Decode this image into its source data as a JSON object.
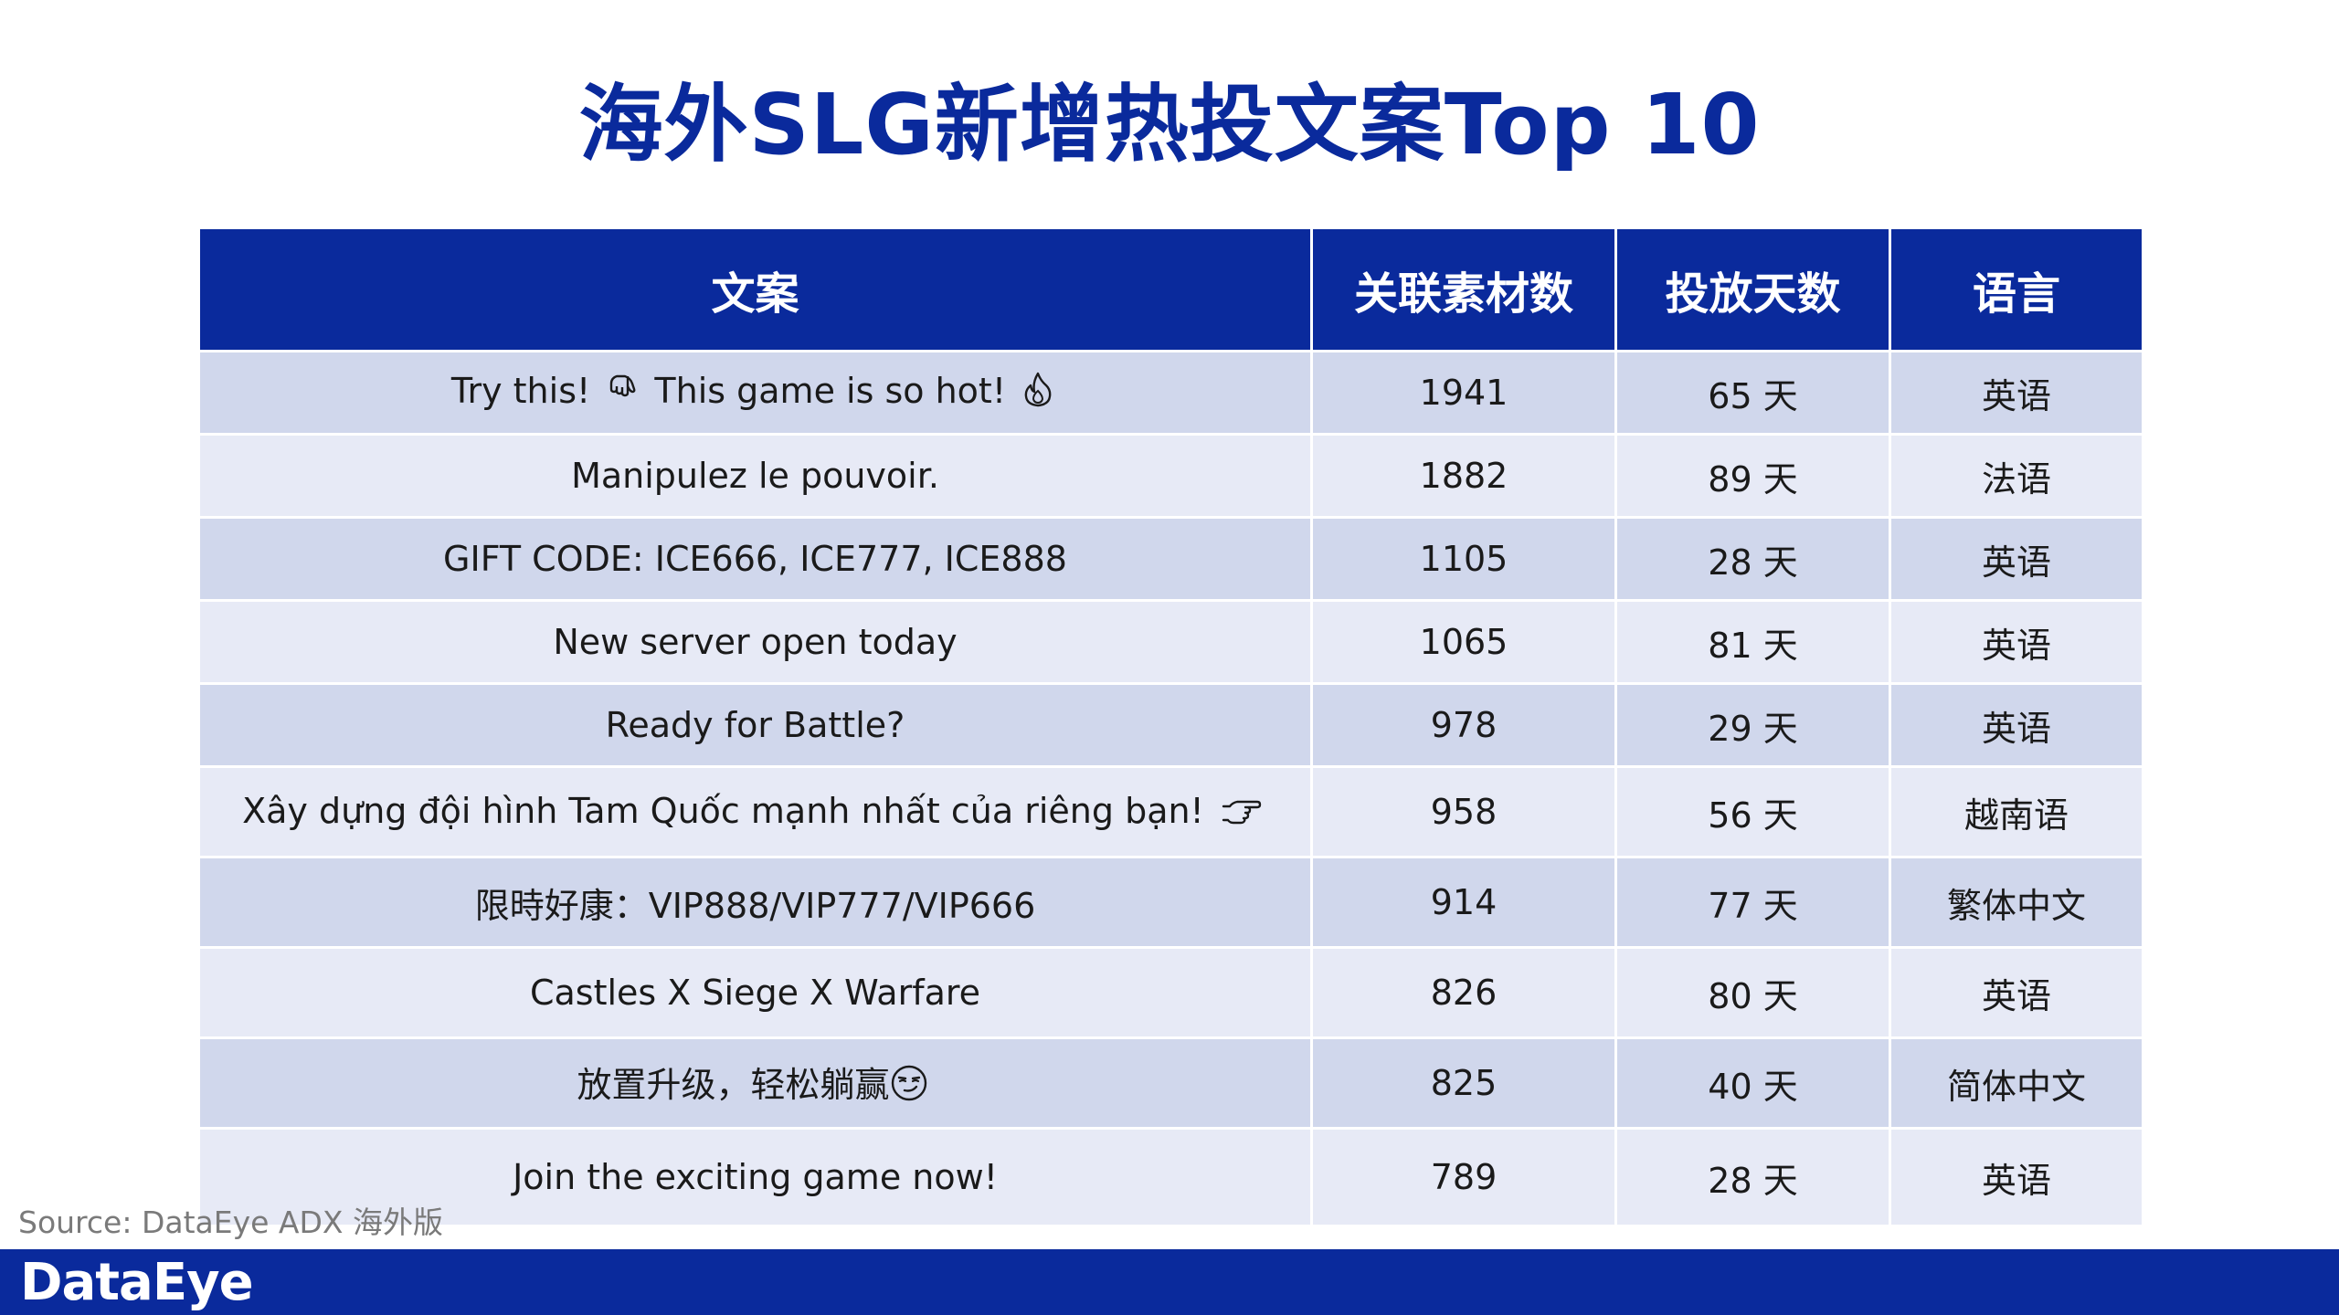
{
  "title": "海外SLG新增热投文案Top 10",
  "chart_data": {
    "type": "table",
    "columns": [
      "文案",
      "关联素材数",
      "投放天数",
      "语言"
    ],
    "rows": [
      {
        "text": "Try this! 👇 This game is so hot! 🔥",
        "text_parts": [
          "Try this!",
          "This game is so hot!"
        ],
        "emojis": [
          "pointing-down-icon",
          "fire-icon"
        ],
        "materials": "1941",
        "days": "65 天",
        "lang": "英语"
      },
      {
        "text": "Manipulez le pouvoir.",
        "materials": "1882",
        "days": "89 天",
        "lang": "法语"
      },
      {
        "text": "GIFT CODE: ICE666, ICE777, ICE888",
        "materials": "1105",
        "days": "28 天",
        "lang": "英语"
      },
      {
        "text": "New server open today",
        "materials": "1065",
        "days": "81 天",
        "lang": "英语"
      },
      {
        "text": "Ready for Battle?",
        "materials": "978",
        "days": "29 天",
        "lang": "英语"
      },
      {
        "text": "Xây dựng đội hình Tam Quốc mạnh nhất của riêng bạn! 👉",
        "text_parts": [
          "Xây dựng đội hình Tam Quốc mạnh nhất của riêng bạn!"
        ],
        "emojis": [
          "pointing-right-icon"
        ],
        "materials": "958",
        "days": "56 天",
        "lang": "越南语"
      },
      {
        "text": "限時好康：VIP888/VIP777/VIP666",
        "materials": "914",
        "days": "77 天",
        "lang": "繁体中文"
      },
      {
        "text": "Castles X Siege X Warfare",
        "materials": "826",
        "days": "80 天",
        "lang": "英语"
      },
      {
        "text": "放置升级，轻松躺赢😏",
        "text_parts": [
          "放置升级，轻松躺赢"
        ],
        "emojis": [
          "smirk-face-icon"
        ],
        "materials": "825",
        "days": "40 天",
        "lang": "简体中文"
      },
      {
        "text": "Join the exciting game now!",
        "materials": "789",
        "days": "28 天",
        "lang": "英语"
      }
    ]
  },
  "source": "Source: DataEye ADX 海外版",
  "footer": {
    "logo": "DataEye"
  }
}
